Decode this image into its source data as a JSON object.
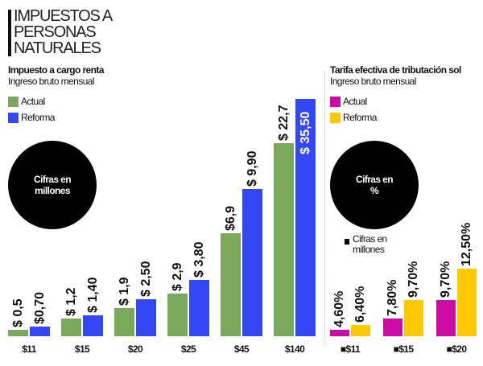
{
  "title_lines": [
    "IMPUESTOS A",
    "PERSONAS",
    "NATURALES"
  ],
  "chart_data": [
    {
      "type": "bar",
      "title": "Impuesto a cargo renta",
      "subtitle": "Ingreso bruto mensual",
      "badge": "Cifras en millones",
      "categories": [
        "$11",
        "$15",
        "$20",
        "$25",
        "$45",
        "$140"
      ],
      "series": [
        {
          "name": "Actual",
          "color": "#7aa95c",
          "values": [
            0.5,
            1.2,
            1.9,
            2.9,
            6.9,
            22.7
          ],
          "labels": [
            "$ 0,5",
            "$ 1,2",
            "$ 1,9",
            "$ 2,9",
            "$6,9",
            "$ 22,7"
          ]
        },
        {
          "name": "Reforma",
          "color": "#3347f5",
          "values": [
            0.7,
            1.4,
            2.5,
            3.8,
            9.9,
            35.5
          ],
          "labels": [
            "$0,70",
            "$ 1,40",
            "$ 2,50",
            "$ 3,80",
            "$ 9,90",
            "$ 35,50"
          ]
        }
      ]
    },
    {
      "type": "bar",
      "title": "Tarifa efectiva de tributación sol",
      "subtitle": "Ingreso bruto mensual",
      "badge": "Cifras en %",
      "note": "Cifras en millones",
      "categories": [
        "$11",
        "$15",
        "$20"
      ],
      "series": [
        {
          "name": "Actual",
          "color": "#cc0aa4",
          "values": [
            4.6,
            7.8,
            9.7
          ],
          "labels": [
            "4,60%",
            "7,80%",
            "9,70%"
          ]
        },
        {
          "name": "Reforma",
          "color": "#fcc800",
          "values": [
            6.4,
            9.7,
            12.5
          ],
          "labels": [
            "6,40%",
            "9,70%",
            "12,50%"
          ]
        }
      ]
    }
  ]
}
